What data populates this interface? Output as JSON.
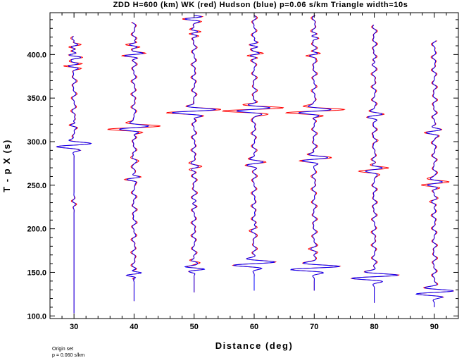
{
  "chart_data": {
    "type": "line",
    "title": "ZDD H=600 (km) WK (red) Hudson (blue) p=0.06 s/km Triangle width=10s",
    "xlabel": "Distance (deg)",
    "ylabel": "T - p X (s)",
    "xlim": [
      26,
      94
    ],
    "ylim": [
      97,
      448
    ],
    "x_ticks": [
      30,
      40,
      50,
      60,
      70,
      80,
      90
    ],
    "x_tick_labels": [
      "30",
      "40",
      "50",
      "60",
      "70",
      "80",
      "90"
    ],
    "y_ticks": [
      100,
      150,
      200,
      250,
      300,
      350,
      400
    ],
    "y_tick_labels": [
      "100.0",
      "150.0",
      "200.0",
      "250.0",
      "300.0",
      "350.0",
      "400.0"
    ],
    "grid": false,
    "legend": "none",
    "series": [
      {
        "color": "#ff0000"
      },
      {
        "color": "#0000ff"
      }
    ],
    "traces": [
      {
        "distance": 30,
        "t_start": 103,
        "t_end": 421,
        "arrival": 296,
        "events": [
          [
            296,
            3.2,
            4
          ],
          [
            388,
            2.0,
            3
          ],
          [
            398,
            -1.5,
            3
          ],
          [
            410,
            1.2,
            3
          ],
          [
            320,
            0.6,
            3
          ],
          [
            230,
            -0.5,
            4
          ]
        ]
      },
      {
        "distance": 40,
        "t_start": 117,
        "t_end": 437,
        "arrival": 148,
        "events": [
          [
            148,
            1.4,
            3
          ],
          [
            316,
            4.8,
            4
          ],
          [
            400,
            2.0,
            3
          ],
          [
            410,
            -1.5,
            3
          ],
          [
            258,
            1.2,
            3
          ],
          [
            280,
            -0.7,
            4
          ]
        ]
      },
      {
        "distance": 50,
        "t_start": 127,
        "t_end": 445,
        "arrival": 155,
        "events": [
          [
            155,
            -2.2,
            3
          ],
          [
            160,
            1.4,
            3
          ],
          [
            335,
            5.0,
            4
          ],
          [
            425,
            1.5,
            3
          ],
          [
            442,
            2.0,
            3
          ],
          [
            270,
            1.0,
            4
          ],
          [
            230,
            0.5,
            4
          ]
        ]
      },
      {
        "distance": 60,
        "t_start": 129,
        "t_end": 445,
        "arrival": 160,
        "events": [
          [
            160,
            3.5,
            4
          ],
          [
            337,
            6.0,
            4
          ],
          [
            275,
            1.8,
            4
          ],
          [
            400,
            1.5,
            3
          ],
          [
            410,
            -1.2,
            3
          ],
          [
            200,
            0.6,
            4
          ]
        ]
      },
      {
        "distance": 70,
        "t_start": 129,
        "t_end": 445,
        "arrival": 155,
        "events": [
          [
            155,
            4.5,
            4
          ],
          [
            335,
            5.5,
            4
          ],
          [
            280,
            3.0,
            4
          ],
          [
            400,
            1.2,
            3
          ],
          [
            420,
            -0.8,
            3
          ],
          [
            175,
            -0.5,
            4
          ]
        ]
      },
      {
        "distance": 80,
        "t_start": 115,
        "t_end": 434,
        "arrival": 145,
        "events": [
          [
            145,
            4.0,
            4
          ],
          [
            268,
            2.5,
            4
          ],
          [
            330,
            2.0,
            4
          ],
          [
            300,
            0.6,
            4
          ],
          [
            390,
            0.5,
            4
          ]
        ]
      },
      {
        "distance": 90,
        "t_start": 110,
        "t_end": 416,
        "arrival": 127,
        "events": [
          [
            127,
            3.5,
            4
          ],
          [
            252,
            3.0,
            4
          ],
          [
            312,
            2.0,
            4
          ],
          [
            230,
            -0.5,
            4
          ]
        ]
      }
    ]
  },
  "notes": {
    "line1": "Origin set",
    "line2": "p = 0.060 s/km"
  }
}
